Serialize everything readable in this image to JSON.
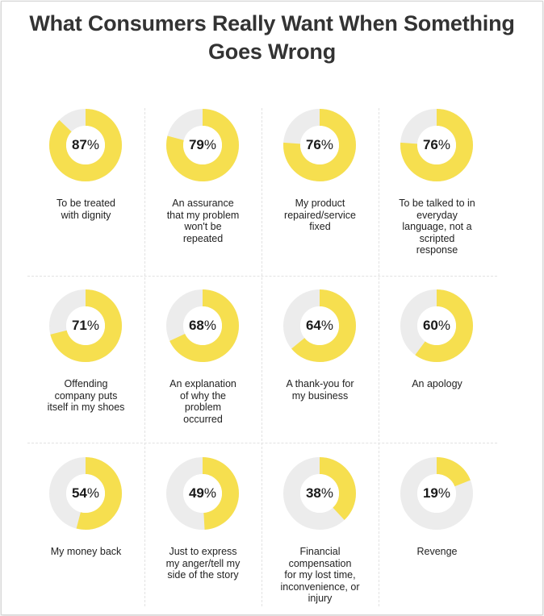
{
  "title_lines": [
    "What Consumers Really Want When Something",
    "Goes Wrong"
  ],
  "colors": {
    "accent": "#f6df4f",
    "track": "#ececec",
    "text": "#222222"
  },
  "chart_data": {
    "type": "donut",
    "title": "What Consumers Really Want When Something Goes Wrong",
    "unit": "%",
    "items": [
      {
        "value": 87,
        "value_text": "87",
        "suffix": "%",
        "label_lines": [
          "To be treated",
          "with dignity"
        ]
      },
      {
        "value": 79,
        "value_text": "79",
        "suffix": "%",
        "label_lines": [
          "An assurance",
          "that my problem",
          "won't be",
          "repeated"
        ]
      },
      {
        "value": 76,
        "value_text": "76",
        "suffix": "%",
        "label_lines": [
          "My product",
          "repaired/service",
          "fixed"
        ]
      },
      {
        "value": 76,
        "value_text": "76",
        "suffix": "%",
        "label_lines": [
          "To be talked to in",
          "everyday",
          "language, not a",
          "scripted",
          "response"
        ]
      },
      {
        "value": 71,
        "value_text": "71",
        "suffix": "%",
        "label_lines": [
          "Offending",
          "company puts",
          "itself in my shoes"
        ]
      },
      {
        "value": 68,
        "value_text": "68",
        "suffix": "%",
        "label_lines": [
          "An explanation",
          "of why the",
          "problem",
          "occurred"
        ]
      },
      {
        "value": 64,
        "value_text": "64",
        "suffix": "%",
        "label_lines": [
          "A thank-you for",
          "my business"
        ]
      },
      {
        "value": 60,
        "value_text": "60",
        "suffix": "%",
        "label_lines": [
          "An apology"
        ]
      },
      {
        "value": 54,
        "value_text": "54",
        "suffix": "%",
        "label_lines": [
          "My money back"
        ]
      },
      {
        "value": 49,
        "value_text": "49",
        "suffix": "%",
        "label_lines": [
          "Just to express",
          "my anger/tell my",
          "side of the story"
        ]
      },
      {
        "value": 38,
        "value_text": "38",
        "suffix": "%",
        "label_lines": [
          "Financial",
          "compensation",
          "for my lost time,",
          "inconvenience, or",
          "injury"
        ]
      },
      {
        "value": 19,
        "value_text": "19",
        "suffix": "%",
        "label_lines": [
          "Revenge"
        ]
      }
    ]
  }
}
